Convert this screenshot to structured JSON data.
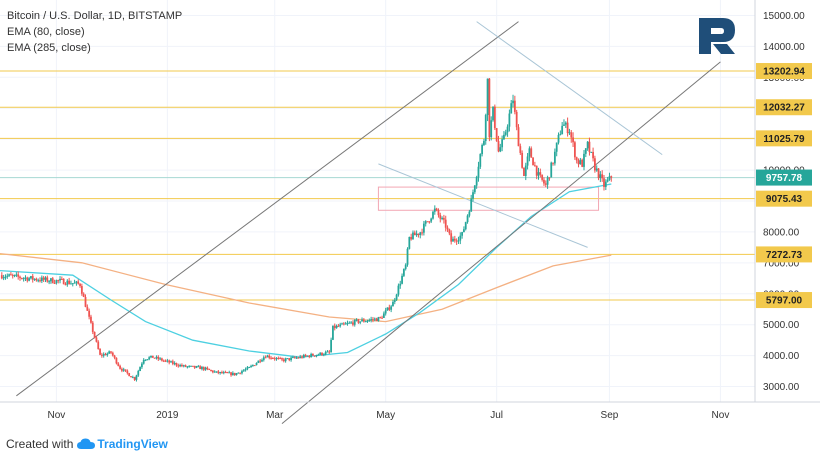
{
  "legend": {
    "line1": "Bitcoin / U.S. Dollar, 1D, BITSTAMP",
    "line2": "EMA (80, close)",
    "line3": "EMA (285, close)"
  },
  "footer": {
    "created_with": "Created with",
    "brand": "TradingView"
  },
  "colors": {
    "candle_up": "#26a69a",
    "candle_down": "#ef5350",
    "ema80": "#4dd0e1",
    "ema285": "#f4b183",
    "level": "#f2c94c",
    "price_tag": "#26a69a",
    "channel": "#777777",
    "down_channel": "#a9c5d6",
    "zone": "#f2a6b3",
    "logo": "#1f4e79"
  },
  "chart_data": {
    "type": "candlestick",
    "title": "Bitcoin / U.S. Dollar, 1D, BITSTAMP",
    "ylim": [
      2500,
      15500
    ],
    "y_ticks": [
      3000,
      4000,
      5000,
      6000,
      7000,
      8000,
      9000,
      10000,
      11000,
      12000,
      13000,
      14000,
      15000
    ],
    "y_tick_labels": [
      "3000.00",
      "4000.00",
      "5000.00",
      "6000.00",
      "7000.00",
      "8000.00",
      "9000.00",
      "10000.00",
      "11000.00",
      "12000.00",
      "13000.00",
      "14000.00",
      "15000.00"
    ],
    "x_ticks": [
      "Nov",
      "2019",
      "Mar",
      "May",
      "Jul",
      "Sep",
      "Nov"
    ],
    "x_range": [
      "2018-10-01",
      "2019-11-20"
    ],
    "x_tick_dates": [
      "2018-11-01",
      "2019-01-01",
      "2019-03-01",
      "2019-05-01",
      "2019-07-01",
      "2019-09-01",
      "2019-11-01"
    ],
    "key_levels": [
      {
        "value": 13202.94,
        "label": "13202.94"
      },
      {
        "value": 12032.27,
        "label": "12032.27"
      },
      {
        "value": 11025.79,
        "label": "11025.79"
      },
      {
        "value": 9075.43,
        "label": "9075.43"
      },
      {
        "value": 7272.73,
        "label": "7272.73"
      },
      {
        "value": 5797.0,
        "label": "5797.00"
      }
    ],
    "current_price": {
      "value": 9757.78,
      "label": "9757.78"
    },
    "price_path": [
      [
        "2018-10-01",
        6600
      ],
      [
        "2018-10-25",
        6450
      ],
      [
        "2018-11-05",
        6400
      ],
      [
        "2018-11-14",
        6300
      ],
      [
        "2018-11-19",
        5200
      ],
      [
        "2018-11-25",
        4000
      ],
      [
        "2018-12-01",
        4100
      ],
      [
        "2018-12-06",
        3600
      ],
      [
        "2018-12-14",
        3250
      ],
      [
        "2018-12-19",
        3900
      ],
      [
        "2018-12-24",
        3950
      ],
      [
        "2019-01-01",
        3800
      ],
      [
        "2019-01-10",
        3650
      ],
      [
        "2019-01-20",
        3600
      ],
      [
        "2019-01-28",
        3450
      ],
      [
        "2019-02-07",
        3400
      ],
      [
        "2019-02-15",
        3600
      ],
      [
        "2019-02-24",
        4000
      ],
      [
        "2019-03-05",
        3850
      ],
      [
        "2019-03-20",
        4000
      ],
      [
        "2019-03-31",
        4100
      ],
      [
        "2019-04-02",
        4900
      ],
      [
        "2019-04-15",
        5100
      ],
      [
        "2019-04-28",
        5200
      ],
      [
        "2019-05-05",
        5700
      ],
      [
        "2019-05-12",
        6900
      ],
      [
        "2019-05-14",
        7800
      ],
      [
        "2019-05-20",
        8000
      ],
      [
        "2019-05-28",
        8700
      ],
      [
        "2019-06-03",
        8200
      ],
      [
        "2019-06-06",
        7700
      ],
      [
        "2019-06-12",
        7900
      ],
      [
        "2019-06-17",
        9000
      ],
      [
        "2019-06-22",
        10500
      ],
      [
        "2019-06-24",
        11000
      ],
      [
        "2019-06-26",
        12900
      ],
      [
        "2019-06-27",
        11200
      ],
      [
        "2019-06-29",
        11900
      ],
      [
        "2019-07-02",
        10600
      ],
      [
        "2019-07-05",
        11000
      ],
      [
        "2019-07-10",
        12300
      ],
      [
        "2019-07-12",
        11300
      ],
      [
        "2019-07-16",
        9800
      ],
      [
        "2019-07-19",
        10600
      ],
      [
        "2019-07-24",
        9800
      ],
      [
        "2019-07-28",
        9500
      ],
      [
        "2019-08-01",
        10300
      ],
      [
        "2019-08-06",
        11500
      ],
      [
        "2019-08-10",
        11300
      ],
      [
        "2019-08-14",
        10300
      ],
      [
        "2019-08-17",
        10200
      ],
      [
        "2019-08-20",
        10800
      ],
      [
        "2019-08-24",
        10100
      ],
      [
        "2019-08-29",
        9500
      ],
      [
        "2019-09-02",
        9757.78
      ]
    ],
    "ema80_path": [
      [
        "2018-10-01",
        6750
      ],
      [
        "2018-11-10",
        6600
      ],
      [
        "2018-12-01",
        5800
      ],
      [
        "2018-12-20",
        5100
      ],
      [
        "2019-01-15",
        4500
      ],
      [
        "2019-02-15",
        4150
      ],
      [
        "2019-03-15",
        3950
      ],
      [
        "2019-04-10",
        4100
      ],
      [
        "2019-05-01",
        4700
      ],
      [
        "2019-05-20",
        5400
      ],
      [
        "2019-06-10",
        6300
      ],
      [
        "2019-07-01",
        7500
      ],
      [
        "2019-07-20",
        8500
      ],
      [
        "2019-08-10",
        9300
      ],
      [
        "2019-09-02",
        9550
      ]
    ],
    "ema285_path": [
      [
        "2018-10-01",
        7300
      ],
      [
        "2018-11-15",
        7000
      ],
      [
        "2018-12-31",
        6300
      ],
      [
        "2019-02-15",
        5700
      ],
      [
        "2019-03-31",
        5250
      ],
      [
        "2019-05-01",
        5100
      ],
      [
        "2019-06-01",
        5500
      ],
      [
        "2019-07-01",
        6200
      ],
      [
        "2019-08-01",
        6900
      ],
      [
        "2019-09-02",
        7250
      ]
    ],
    "ascending_channel": {
      "upper": [
        [
          "2018-10-10",
          2700
        ],
        [
          "2019-07-13",
          14800
        ]
      ],
      "lower": [
        [
          "2019-03-05",
          1800
        ],
        [
          "2019-11-01",
          13500
        ]
      ]
    },
    "descending_channel": {
      "upper": [
        [
          "2019-06-20",
          14800
        ],
        [
          "2019-09-30",
          10500
        ]
      ],
      "lower": [
        [
          "2019-04-27",
          10200
        ],
        [
          "2019-08-20",
          7500
        ]
      ]
    },
    "zone": {
      "from": "2019-04-27",
      "to": "2019-08-26",
      "y_low": 8700,
      "y_high": 9450
    }
  }
}
